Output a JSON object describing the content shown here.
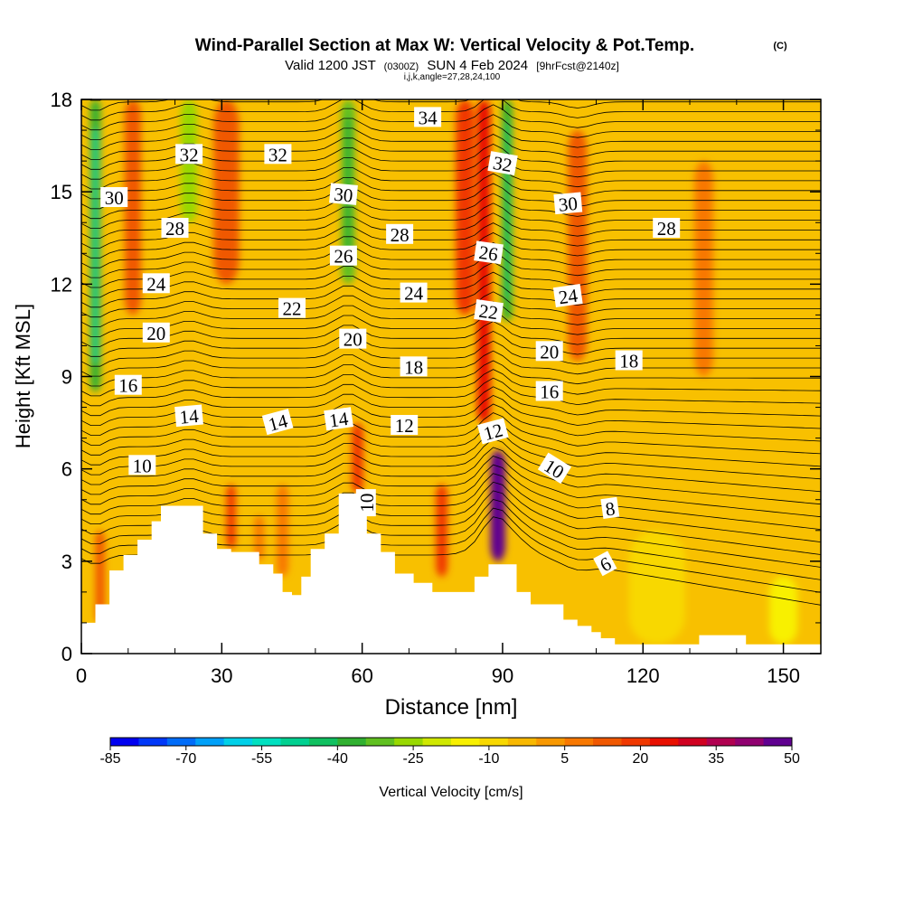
{
  "chart_data": {
    "type": "heatmap",
    "title_main": "Wind-Parallel Section at Max W: Vertical Velocity & Pot.Temp.",
    "title_mark": "(C)",
    "subtitle_parts": [
      "Valid 1200 JST",
      "(0300Z)",
      "SUN 4 Feb 2024",
      "[9hrFcst@2140z]"
    ],
    "subtitle2": "i,j,k,angle=27,28,24,100",
    "xlabel": "Distance [nm]",
    "ylabel": "Height [Kft MSL]",
    "xlim": [
      0,
      158
    ],
    "ylim": [
      0,
      18
    ],
    "x_ticks": [
      0,
      30,
      60,
      90,
      120,
      150
    ],
    "y_ticks": [
      0,
      3,
      6,
      9,
      12,
      15,
      18
    ],
    "colorbar": {
      "label": "Vertical Velocity [cm/s]",
      "tick_labels": [
        "-85",
        "-70",
        "-55",
        "-40",
        "-25",
        "-10",
        "5",
        "20",
        "35",
        "50"
      ],
      "colors": [
        "#0000f0",
        "#0038f8",
        "#006cf8",
        "#00a0f8",
        "#00d0e8",
        "#00e0c0",
        "#00d090",
        "#10c060",
        "#30b030",
        "#60c020",
        "#98d800",
        "#d0e800",
        "#f8f000",
        "#f8d800",
        "#f8b800",
        "#f89800",
        "#f87800",
        "#f05800",
        "#f03800",
        "#e81000",
        "#d00020",
        "#b00050",
        "#900070",
        "#600090"
      ]
    },
    "theta_labels": [
      {
        "text": "30",
        "x": 7,
        "y": 14.8,
        "rot": 0
      },
      {
        "text": "32",
        "x": 23,
        "y": 16.2,
        "rot": 0
      },
      {
        "text": "32",
        "x": 42,
        "y": 16.2,
        "rot": 0
      },
      {
        "text": "34",
        "x": 74,
        "y": 17.4,
        "rot": 0
      },
      {
        "text": "30",
        "x": 56,
        "y": 14.9,
        "rot": 5
      },
      {
        "text": "32",
        "x": 90,
        "y": 15.9,
        "rot": 10
      },
      {
        "text": "30",
        "x": 104,
        "y": 14.6,
        "rot": -5
      },
      {
        "text": "28",
        "x": 20,
        "y": 13.8,
        "rot": 0
      },
      {
        "text": "28",
        "x": 68,
        "y": 13.6,
        "rot": 0
      },
      {
        "text": "28",
        "x": 125,
        "y": 13.8,
        "rot": 0
      },
      {
        "text": "26",
        "x": 56,
        "y": 12.9,
        "rot": 0
      },
      {
        "text": "26",
        "x": 87,
        "y": 13.0,
        "rot": 8
      },
      {
        "text": "24",
        "x": 16,
        "y": 12.0,
        "rot": 0
      },
      {
        "text": "24",
        "x": 71,
        "y": 11.7,
        "rot": 0
      },
      {
        "text": "24",
        "x": 104,
        "y": 11.6,
        "rot": -8
      },
      {
        "text": "22",
        "x": 45,
        "y": 11.2,
        "rot": 0
      },
      {
        "text": "22",
        "x": 87,
        "y": 11.1,
        "rot": 8
      },
      {
        "text": "20",
        "x": 16,
        "y": 10.4,
        "rot": 0
      },
      {
        "text": "20",
        "x": 58,
        "y": 10.2,
        "rot": 0
      },
      {
        "text": "20",
        "x": 100,
        "y": 9.8,
        "rot": 0
      },
      {
        "text": "18",
        "x": 71,
        "y": 9.3,
        "rot": 0
      },
      {
        "text": "18",
        "x": 117,
        "y": 9.5,
        "rot": 0
      },
      {
        "text": "16",
        "x": 10,
        "y": 8.7,
        "rot": 0
      },
      {
        "text": "16",
        "x": 100,
        "y": 8.5,
        "rot": 0
      },
      {
        "text": "14",
        "x": 23,
        "y": 7.7,
        "rot": -5
      },
      {
        "text": "14",
        "x": 42,
        "y": 7.5,
        "rot": -15
      },
      {
        "text": "14",
        "x": 55,
        "y": 7.6,
        "rot": -8
      },
      {
        "text": "12",
        "x": 69,
        "y": 7.4,
        "rot": 0
      },
      {
        "text": "12",
        "x": 88,
        "y": 7.2,
        "rot": -15
      },
      {
        "text": "10",
        "x": 13,
        "y": 6.1,
        "rot": 0
      },
      {
        "text": "10",
        "x": 61,
        "y": 4.9,
        "rot": -90
      },
      {
        "text": "10",
        "x": 101,
        "y": 6.0,
        "rot": 32
      },
      {
        "text": "8",
        "x": 113,
        "y": 4.7,
        "rot": -8
      },
      {
        "text": "6",
        "x": 112,
        "y": 2.9,
        "rot": -28
      }
    ],
    "terrain": [
      [
        0,
        1.0
      ],
      [
        3,
        1.0
      ],
      [
        3,
        1.6
      ],
      [
        6,
        1.6
      ],
      [
        6,
        2.7
      ],
      [
        9,
        2.7
      ],
      [
        9,
        3.2
      ],
      [
        12,
        3.2
      ],
      [
        12,
        3.7
      ],
      [
        15,
        3.7
      ],
      [
        15,
        4.3
      ],
      [
        17,
        4.3
      ],
      [
        17,
        4.8
      ],
      [
        26,
        4.8
      ],
      [
        26,
        3.9
      ],
      [
        29,
        3.9
      ],
      [
        29,
        3.4
      ],
      [
        32,
        3.4
      ],
      [
        32,
        3.3
      ],
      [
        38,
        3.3
      ],
      [
        38,
        2.9
      ],
      [
        41,
        2.9
      ],
      [
        41,
        2.6
      ],
      [
        43,
        2.6
      ],
      [
        43,
        2.0
      ],
      [
        45,
        2.0
      ],
      [
        45,
        1.9
      ],
      [
        47,
        1.9
      ],
      [
        47,
        2.5
      ],
      [
        49,
        2.5
      ],
      [
        49,
        3.4
      ],
      [
        52,
        3.4
      ],
      [
        52,
        3.9
      ],
      [
        55,
        3.9
      ],
      [
        55,
        5.2
      ],
      [
        61,
        5.2
      ],
      [
        61,
        3.9
      ],
      [
        64,
        3.9
      ],
      [
        64,
        3.3
      ],
      [
        67,
        3.3
      ],
      [
        67,
        2.6
      ],
      [
        71,
        2.6
      ],
      [
        71,
        2.3
      ],
      [
        75,
        2.3
      ],
      [
        75,
        2.0
      ],
      [
        84,
        2.0
      ],
      [
        84,
        2.5
      ],
      [
        87,
        2.5
      ],
      [
        87,
        2.9
      ],
      [
        93,
        2.9
      ],
      [
        93,
        2.0
      ],
      [
        96,
        2.0
      ],
      [
        96,
        1.6
      ],
      [
        103,
        1.6
      ],
      [
        103,
        1.1
      ],
      [
        106,
        1.1
      ],
      [
        106,
        0.9
      ],
      [
        109,
        0.9
      ],
      [
        109,
        0.7
      ],
      [
        111,
        0.7
      ],
      [
        111,
        0.5
      ],
      [
        114,
        0.5
      ],
      [
        114,
        0.3
      ],
      [
        132,
        0.3
      ],
      [
        132,
        0.6
      ],
      [
        142,
        0.6
      ],
      [
        142,
        0.3
      ],
      [
        158,
        0.3
      ]
    ],
    "w_features": [
      {
        "x": 3,
        "ytop": 18,
        "ybot": 8.5,
        "w": -40,
        "width": 2.2
      },
      {
        "x": 23,
        "ytop": 18,
        "ybot": 14,
        "w": -25,
        "width": 3.5
      },
      {
        "x": 57,
        "ytop": 18,
        "ybot": 12,
        "w": -30,
        "width": 3.0
      },
      {
        "x": 91,
        "ytop": 18,
        "ybot": 10.8,
        "w": -35,
        "width": 2.2
      },
      {
        "x": 86,
        "ytop": 18,
        "ybot": 7.5,
        "w": 25,
        "width": 2.8
      },
      {
        "x": 82,
        "ytop": 18,
        "ybot": 11,
        "w": 18,
        "width": 4.0
      },
      {
        "x": 106,
        "ytop": 17,
        "ybot": 9.5,
        "w": 15,
        "width": 4.0
      },
      {
        "x": 31,
        "ytop": 18,
        "ybot": 12,
        "w": 14,
        "width": 5.5
      },
      {
        "x": 11,
        "ytop": 18,
        "ybot": 11,
        "w": 12,
        "width": 3.5
      },
      {
        "x": 89,
        "ytop": 6.6,
        "ybot": 3.0,
        "w": 50,
        "width": 3.2
      },
      {
        "x": 77,
        "ytop": 5.5,
        "ybot": 2.5,
        "w": 18,
        "width": 2.5
      },
      {
        "x": 32,
        "ytop": 5.5,
        "ybot": 3.4,
        "w": 20,
        "width": 2.0
      },
      {
        "x": 59,
        "ytop": 7.5,
        "ybot": 5.2,
        "w": 18,
        "width": 2.5
      },
      {
        "x": 4,
        "ytop": 4.0,
        "ybot": 1.0,
        "w": 12,
        "width": 2.0
      },
      {
        "x": 43,
        "ytop": 5.5,
        "ybot": 2.5,
        "w": 10,
        "width": 2.5
      },
      {
        "x": 38,
        "ytop": 4.5,
        "ybot": 3.0,
        "w": 8,
        "width": 2.0
      },
      {
        "x": 133,
        "ytop": 16,
        "ybot": 9,
        "w": 8,
        "width": 4.0
      },
      {
        "x": 123,
        "ytop": 4,
        "ybot": 0.3,
        "w": -10,
        "width": 12.0
      },
      {
        "x": 150,
        "ytop": 2.5,
        "ybot": 0.3,
        "w": -12,
        "width": 6.0
      }
    ]
  }
}
